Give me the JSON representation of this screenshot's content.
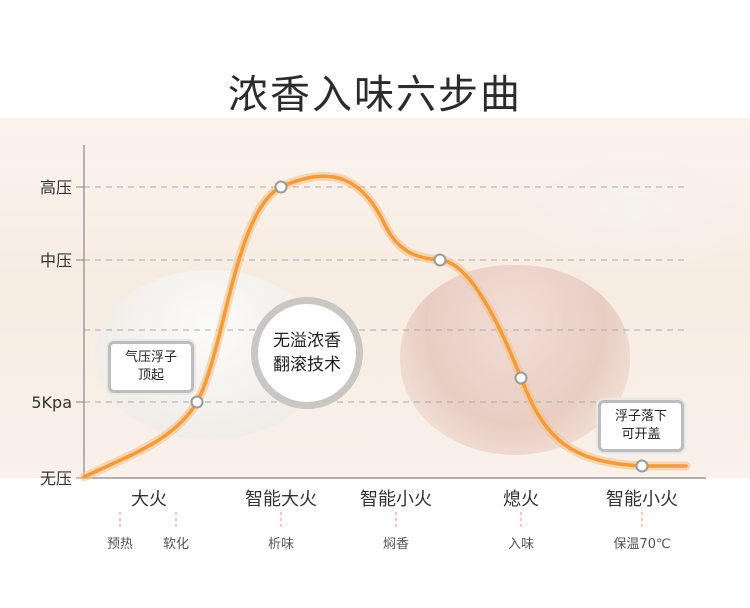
{
  "title": "浓香入味六步曲",
  "pressure_levels": [
    "高压",
    "中压",
    "5Kpa",
    "无压"
  ],
  "stages": [
    {
      "label": "大火",
      "subs": [
        "预热",
        "软化"
      ]
    },
    {
      "label": "智能大火",
      "subs": [
        "析味"
      ]
    },
    {
      "label": "智能小火",
      "subs": [
        "焖香"
      ]
    },
    {
      "label": "熄火",
      "subs": [
        "入味"
      ]
    },
    {
      "label": "智能小火",
      "subs": [
        "保温70℃"
      ]
    }
  ],
  "notes": {
    "float_up": [
      "气压浮子",
      "顶起"
    ],
    "float_down": [
      "浮子落下",
      "可开盖"
    ]
  },
  "badge": [
    "无溢浓香",
    "翻滚技术"
  ],
  "colors": {
    "curve": "#f39b3a",
    "curve_glow": "#f7c38a",
    "point": "#9a9a9a",
    "grid": "#aaaaaa"
  }
}
